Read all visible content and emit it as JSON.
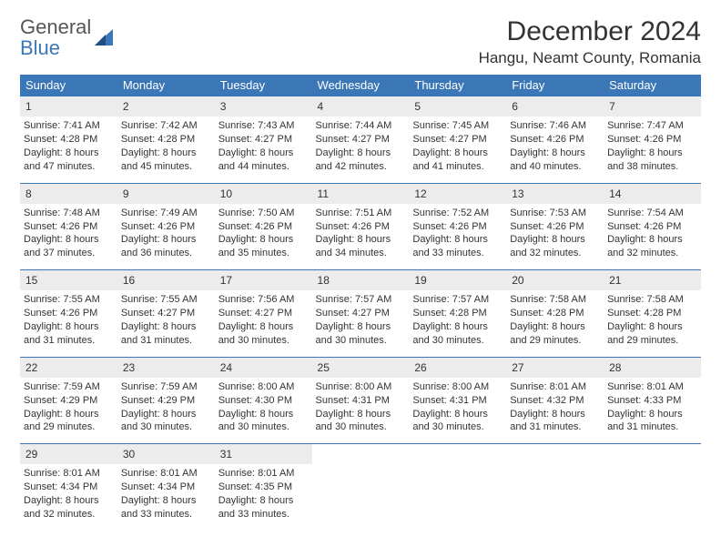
{
  "logo": {
    "line1": "General",
    "line2": "Blue"
  },
  "title": {
    "month": "December 2024",
    "location": "Hangu, Neamt County, Romania"
  },
  "colors": {
    "header_bg": "#3b77b7",
    "header_fg": "#ffffff",
    "daynum_bg": "#ececec",
    "border": "#3b77b7",
    "logo_gray": "#6a6a6a",
    "logo_blue": "#3b77b7"
  },
  "weekdays": [
    "Sunday",
    "Monday",
    "Tuesday",
    "Wednesday",
    "Thursday",
    "Friday",
    "Saturday"
  ],
  "weeks": [
    {
      "days": [
        {
          "num": "1",
          "sunrise": "Sunrise: 7:41 AM",
          "sunset": "Sunset: 4:28 PM",
          "day1": "Daylight: 8 hours",
          "day2": "and 47 minutes."
        },
        {
          "num": "2",
          "sunrise": "Sunrise: 7:42 AM",
          "sunset": "Sunset: 4:28 PM",
          "day1": "Daylight: 8 hours",
          "day2": "and 45 minutes."
        },
        {
          "num": "3",
          "sunrise": "Sunrise: 7:43 AM",
          "sunset": "Sunset: 4:27 PM",
          "day1": "Daylight: 8 hours",
          "day2": "and 44 minutes."
        },
        {
          "num": "4",
          "sunrise": "Sunrise: 7:44 AM",
          "sunset": "Sunset: 4:27 PM",
          "day1": "Daylight: 8 hours",
          "day2": "and 42 minutes."
        },
        {
          "num": "5",
          "sunrise": "Sunrise: 7:45 AM",
          "sunset": "Sunset: 4:27 PM",
          "day1": "Daylight: 8 hours",
          "day2": "and 41 minutes."
        },
        {
          "num": "6",
          "sunrise": "Sunrise: 7:46 AM",
          "sunset": "Sunset: 4:26 PM",
          "day1": "Daylight: 8 hours",
          "day2": "and 40 minutes."
        },
        {
          "num": "7",
          "sunrise": "Sunrise: 7:47 AM",
          "sunset": "Sunset: 4:26 PM",
          "day1": "Daylight: 8 hours",
          "day2": "and 38 minutes."
        }
      ]
    },
    {
      "days": [
        {
          "num": "8",
          "sunrise": "Sunrise: 7:48 AM",
          "sunset": "Sunset: 4:26 PM",
          "day1": "Daylight: 8 hours",
          "day2": "and 37 minutes."
        },
        {
          "num": "9",
          "sunrise": "Sunrise: 7:49 AM",
          "sunset": "Sunset: 4:26 PM",
          "day1": "Daylight: 8 hours",
          "day2": "and 36 minutes."
        },
        {
          "num": "10",
          "sunrise": "Sunrise: 7:50 AM",
          "sunset": "Sunset: 4:26 PM",
          "day1": "Daylight: 8 hours",
          "day2": "and 35 minutes."
        },
        {
          "num": "11",
          "sunrise": "Sunrise: 7:51 AM",
          "sunset": "Sunset: 4:26 PM",
          "day1": "Daylight: 8 hours",
          "day2": "and 34 minutes."
        },
        {
          "num": "12",
          "sunrise": "Sunrise: 7:52 AM",
          "sunset": "Sunset: 4:26 PM",
          "day1": "Daylight: 8 hours",
          "day2": "and 33 minutes."
        },
        {
          "num": "13",
          "sunrise": "Sunrise: 7:53 AM",
          "sunset": "Sunset: 4:26 PM",
          "day1": "Daylight: 8 hours",
          "day2": "and 32 minutes."
        },
        {
          "num": "14",
          "sunrise": "Sunrise: 7:54 AM",
          "sunset": "Sunset: 4:26 PM",
          "day1": "Daylight: 8 hours",
          "day2": "and 32 minutes."
        }
      ]
    },
    {
      "days": [
        {
          "num": "15",
          "sunrise": "Sunrise: 7:55 AM",
          "sunset": "Sunset: 4:26 PM",
          "day1": "Daylight: 8 hours",
          "day2": "and 31 minutes."
        },
        {
          "num": "16",
          "sunrise": "Sunrise: 7:55 AM",
          "sunset": "Sunset: 4:27 PM",
          "day1": "Daylight: 8 hours",
          "day2": "and 31 minutes."
        },
        {
          "num": "17",
          "sunrise": "Sunrise: 7:56 AM",
          "sunset": "Sunset: 4:27 PM",
          "day1": "Daylight: 8 hours",
          "day2": "and 30 minutes."
        },
        {
          "num": "18",
          "sunrise": "Sunrise: 7:57 AM",
          "sunset": "Sunset: 4:27 PM",
          "day1": "Daylight: 8 hours",
          "day2": "and 30 minutes."
        },
        {
          "num": "19",
          "sunrise": "Sunrise: 7:57 AM",
          "sunset": "Sunset: 4:28 PM",
          "day1": "Daylight: 8 hours",
          "day2": "and 30 minutes."
        },
        {
          "num": "20",
          "sunrise": "Sunrise: 7:58 AM",
          "sunset": "Sunset: 4:28 PM",
          "day1": "Daylight: 8 hours",
          "day2": "and 29 minutes."
        },
        {
          "num": "21",
          "sunrise": "Sunrise: 7:58 AM",
          "sunset": "Sunset: 4:28 PM",
          "day1": "Daylight: 8 hours",
          "day2": "and 29 minutes."
        }
      ]
    },
    {
      "days": [
        {
          "num": "22",
          "sunrise": "Sunrise: 7:59 AM",
          "sunset": "Sunset: 4:29 PM",
          "day1": "Daylight: 8 hours",
          "day2": "and 29 minutes."
        },
        {
          "num": "23",
          "sunrise": "Sunrise: 7:59 AM",
          "sunset": "Sunset: 4:29 PM",
          "day1": "Daylight: 8 hours",
          "day2": "and 30 minutes."
        },
        {
          "num": "24",
          "sunrise": "Sunrise: 8:00 AM",
          "sunset": "Sunset: 4:30 PM",
          "day1": "Daylight: 8 hours",
          "day2": "and 30 minutes."
        },
        {
          "num": "25",
          "sunrise": "Sunrise: 8:00 AM",
          "sunset": "Sunset: 4:31 PM",
          "day1": "Daylight: 8 hours",
          "day2": "and 30 minutes."
        },
        {
          "num": "26",
          "sunrise": "Sunrise: 8:00 AM",
          "sunset": "Sunset: 4:31 PM",
          "day1": "Daylight: 8 hours",
          "day2": "and 30 minutes."
        },
        {
          "num": "27",
          "sunrise": "Sunrise: 8:01 AM",
          "sunset": "Sunset: 4:32 PM",
          "day1": "Daylight: 8 hours",
          "day2": "and 31 minutes."
        },
        {
          "num": "28",
          "sunrise": "Sunrise: 8:01 AM",
          "sunset": "Sunset: 4:33 PM",
          "day1": "Daylight: 8 hours",
          "day2": "and 31 minutes."
        }
      ]
    },
    {
      "days": [
        {
          "num": "29",
          "sunrise": "Sunrise: 8:01 AM",
          "sunset": "Sunset: 4:34 PM",
          "day1": "Daylight: 8 hours",
          "day2": "and 32 minutes."
        },
        {
          "num": "30",
          "sunrise": "Sunrise: 8:01 AM",
          "sunset": "Sunset: 4:34 PM",
          "day1": "Daylight: 8 hours",
          "day2": "and 33 minutes."
        },
        {
          "num": "31",
          "sunrise": "Sunrise: 8:01 AM",
          "sunset": "Sunset: 4:35 PM",
          "day1": "Daylight: 8 hours",
          "day2": "and 33 minutes."
        },
        null,
        null,
        null,
        null
      ]
    }
  ]
}
